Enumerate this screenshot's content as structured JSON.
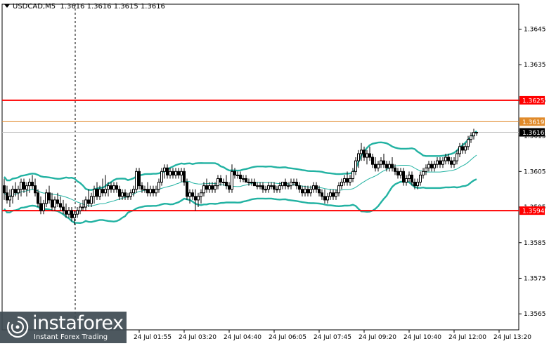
{
  "header": {
    "symbol": "USDCAD,M5",
    "ohlc": "1.3616 1.3616 1.3615 1.3616"
  },
  "watermark": {
    "brand": "instaforex",
    "tagline": "Instant Forex Trading"
  },
  "chart_data": {
    "type": "candlestick",
    "symbol": "USDCAD",
    "timeframe": "M5",
    "ylim": [
      1.35605,
      1.3652
    ],
    "y_ticks": [
      "1.3645",
      "1.3635",
      "1.3625",
      "1.3615",
      "1.3605",
      "1.3595",
      "1.3585",
      "1.3575",
      "1.3565"
    ],
    "x_ticks": [
      "24 Jul 01:55",
      "24 Jul 03:20",
      "24 Jul 04:40",
      "24 Jul 06:05",
      "24 Jul 07:45",
      "24 Jul 09:20",
      "24 Jul 10:40",
      "24 Jul 12:00",
      "24 Jul 13:20"
    ],
    "x_tick_index": [
      48,
      64,
      80,
      96,
      112,
      128,
      144,
      160,
      176
    ],
    "levels": [
      {
        "label": "1.3625",
        "value": 1.3625,
        "color": "#ff0000"
      },
      {
        "label": "1.3619",
        "value": 1.3619,
        "color": "#e08a2a"
      },
      {
        "label": "1.3616",
        "value": 1.3616,
        "color": "#c0c0c0"
      },
      {
        "label": "1.3594",
        "value": 1.3594,
        "color": "#ff0000"
      }
    ],
    "price_label": "1.3616",
    "candles": [
      [
        1.3601,
        1.3603,
        1.3597,
        1.3599
      ],
      [
        1.3599,
        1.3601,
        1.3596,
        1.3597
      ],
      [
        1.3597,
        1.36,
        1.3595,
        1.3598
      ],
      [
        1.3598,
        1.3601,
        1.3596,
        1.36
      ],
      [
        1.36,
        1.3602,
        1.3598,
        1.3599
      ],
      [
        1.3599,
        1.3601,
        1.3597,
        1.36
      ],
      [
        1.36,
        1.3603,
        1.3598,
        1.3602
      ],
      [
        1.3602,
        1.3603,
        1.3599,
        1.36
      ],
      [
        1.36,
        1.3602,
        1.3598,
        1.3601
      ],
      [
        1.3601,
        1.3603,
        1.3599,
        1.3602
      ],
      [
        1.3602,
        1.3604,
        1.36,
        1.3601
      ],
      [
        1.3601,
        1.3603,
        1.3598,
        1.3599
      ],
      [
        1.3599,
        1.36,
        1.3595,
        1.3596
      ],
      [
        1.3596,
        1.3598,
        1.3593,
        1.3594
      ],
      [
        1.3594,
        1.3597,
        1.3593,
        1.3596
      ],
      [
        1.3596,
        1.36,
        1.3595,
        1.3599
      ],
      [
        1.3599,
        1.3601,
        1.3596,
        1.3597
      ],
      [
        1.3597,
        1.3599,
        1.3594,
        1.3595
      ],
      [
        1.3595,
        1.3598,
        1.3594,
        1.3597
      ],
      [
        1.3597,
        1.3599,
        1.3595,
        1.3596
      ],
      [
        1.3596,
        1.3598,
        1.3594,
        1.3595
      ],
      [
        1.3595,
        1.3597,
        1.3593,
        1.3594
      ],
      [
        1.3594,
        1.3596,
        1.3592,
        1.3593
      ],
      [
        1.3593,
        1.3595,
        1.3592,
        1.3594
      ],
      [
        1.3594,
        1.3595,
        1.3591,
        1.3592
      ],
      [
        1.3592,
        1.3594,
        1.359,
        1.3593
      ],
      [
        1.3593,
        1.3595,
        1.3592,
        1.3594
      ],
      [
        1.3594,
        1.3596,
        1.3593,
        1.3595
      ],
      [
        1.3595,
        1.3597,
        1.3594,
        1.3595
      ],
      [
        1.3595,
        1.3598,
        1.3594,
        1.3597
      ],
      [
        1.3597,
        1.36,
        1.3595,
        1.3596
      ],
      [
        1.3596,
        1.3599,
        1.3595,
        1.3598
      ],
      [
        1.3598,
        1.3601,
        1.3596,
        1.36
      ],
      [
        1.36,
        1.3602,
        1.3597,
        1.3598
      ],
      [
        1.3598,
        1.3601,
        1.3597,
        1.36
      ],
      [
        1.36,
        1.3603,
        1.3598,
        1.3599
      ],
      [
        1.3599,
        1.3604,
        1.3598,
        1.36
      ],
      [
        1.36,
        1.3602,
        1.3598,
        1.3601
      ],
      [
        1.3601,
        1.3602,
        1.3599,
        1.36
      ],
      [
        1.36,
        1.3602,
        1.3599,
        1.3601
      ],
      [
        1.3601,
        1.3602,
        1.3599,
        1.36
      ],
      [
        1.36,
        1.3601,
        1.3597,
        1.3598
      ],
      [
        1.3598,
        1.36,
        1.3597,
        1.3599
      ],
      [
        1.3599,
        1.36,
        1.3597,
        1.3598
      ],
      [
        1.3598,
        1.3599,
        1.3597,
        1.3598
      ],
      [
        1.3598,
        1.36,
        1.3597,
        1.3599
      ],
      [
        1.3599,
        1.3601,
        1.3598,
        1.36
      ],
      [
        1.36,
        1.3606,
        1.3599,
        1.3605
      ],
      [
        1.3605,
        1.3606,
        1.36,
        1.3601
      ],
      [
        1.3601,
        1.3602,
        1.3599,
        1.36
      ],
      [
        1.36,
        1.3601,
        1.3599,
        1.36
      ],
      [
        1.36,
        1.3602,
        1.3598,
        1.3599
      ],
      [
        1.3599,
        1.3601,
        1.3598,
        1.36
      ],
      [
        1.36,
        1.3601,
        1.3598,
        1.3599
      ],
      [
        1.3599,
        1.3601,
        1.3598,
        1.36
      ],
      [
        1.36,
        1.3603,
        1.3599,
        1.3602
      ],
      [
        1.3602,
        1.3606,
        1.3601,
        1.3605
      ],
      [
        1.3605,
        1.3607,
        1.3603,
        1.3606
      ],
      [
        1.3606,
        1.3607,
        1.3603,
        1.3604
      ],
      [
        1.3604,
        1.3606,
        1.3603,
        1.3605
      ],
      [
        1.3605,
        1.3606,
        1.3603,
        1.3604
      ],
      [
        1.3604,
        1.3606,
        1.3603,
        1.3605
      ],
      [
        1.3605,
        1.3606,
        1.3603,
        1.3604
      ],
      [
        1.3604,
        1.3606,
        1.3602,
        1.3605
      ],
      [
        1.3605,
        1.3606,
        1.3601,
        1.3602
      ],
      [
        1.3602,
        1.3603,
        1.3597,
        1.3598
      ],
      [
        1.3598,
        1.36,
        1.3596,
        1.3599
      ],
      [
        1.3599,
        1.36,
        1.3597,
        1.3598
      ],
      [
        1.3598,
        1.36,
        1.3594,
        1.3597
      ],
      [
        1.3597,
        1.3599,
        1.3595,
        1.3598
      ],
      [
        1.3598,
        1.36,
        1.3596,
        1.3599
      ],
      [
        1.3599,
        1.3602,
        1.3598,
        1.3601
      ],
      [
        1.3601,
        1.3603,
        1.3599,
        1.36
      ],
      [
        1.36,
        1.3602,
        1.3599,
        1.3601
      ],
      [
        1.3601,
        1.3602,
        1.3599,
        1.36
      ],
      [
        1.36,
        1.3602,
        1.3599,
        1.3601
      ],
      [
        1.3601,
        1.3604,
        1.36,
        1.3603
      ],
      [
        1.3603,
        1.3604,
        1.3601,
        1.3602
      ],
      [
        1.3602,
        1.3603,
        1.3601,
        1.3602
      ],
      [
        1.3602,
        1.3604,
        1.36,
        1.3601
      ],
      [
        1.3601,
        1.3602,
        1.3599,
        1.36
      ],
      [
        1.36,
        1.3607,
        1.3599,
        1.3605
      ],
      [
        1.3605,
        1.3606,
        1.3603,
        1.3604
      ],
      [
        1.3604,
        1.3605,
        1.3603,
        1.3604
      ],
      [
        1.3604,
        1.3605,
        1.3602,
        1.3603
      ],
      [
        1.3603,
        1.3604,
        1.3602,
        1.3603
      ],
      [
        1.3603,
        1.3604,
        1.3602,
        1.3602
      ],
      [
        1.3602,
        1.3603,
        1.3601,
        1.3602
      ],
      [
        1.3602,
        1.3603,
        1.3601,
        1.3602
      ],
      [
        1.3602,
        1.3603,
        1.3601,
        1.3601
      ],
      [
        1.3601,
        1.3602,
        1.36,
        1.3601
      ],
      [
        1.3601,
        1.3602,
        1.36,
        1.3601
      ],
      [
        1.3601,
        1.3602,
        1.3599,
        1.36
      ],
      [
        1.36,
        1.3601,
        1.3599,
        1.36
      ],
      [
        1.36,
        1.3602,
        1.3599,
        1.3601
      ],
      [
        1.3601,
        1.3602,
        1.36,
        1.3601
      ],
      [
        1.3601,
        1.3602,
        1.3599,
        1.36
      ],
      [
        1.36,
        1.3601,
        1.3599,
        1.36
      ],
      [
        1.36,
        1.3602,
        1.3599,
        1.3601
      ],
      [
        1.3601,
        1.3602,
        1.36,
        1.3602
      ],
      [
        1.3602,
        1.3603,
        1.36,
        1.3601
      ],
      [
        1.3601,
        1.3602,
        1.36,
        1.3601
      ],
      [
        1.3601,
        1.3603,
        1.36,
        1.3602
      ],
      [
        1.3602,
        1.3603,
        1.3601,
        1.3602
      ],
      [
        1.3602,
        1.3603,
        1.36,
        1.3601
      ],
      [
        1.3601,
        1.3602,
        1.3599,
        1.36
      ],
      [
        1.36,
        1.3601,
        1.3598,
        1.3599
      ],
      [
        1.3599,
        1.3601,
        1.3598,
        1.36
      ],
      [
        1.36,
        1.3601,
        1.3598,
        1.3599
      ],
      [
        1.3599,
        1.3601,
        1.3598,
        1.36
      ],
      [
        1.36,
        1.3602,
        1.3599,
        1.3601
      ],
      [
        1.3601,
        1.3602,
        1.3599,
        1.36
      ],
      [
        1.36,
        1.3601,
        1.3598,
        1.3599
      ],
      [
        1.3599,
        1.36,
        1.3597,
        1.3598
      ],
      [
        1.3598,
        1.36,
        1.3596,
        1.3597
      ],
      [
        1.3597,
        1.3599,
        1.3596,
        1.3598
      ],
      [
        1.3598,
        1.36,
        1.3597,
        1.3599
      ],
      [
        1.3599,
        1.36,
        1.3597,
        1.3598
      ],
      [
        1.3598,
        1.36,
        1.3597,
        1.3599
      ],
      [
        1.3599,
        1.3602,
        1.3598,
        1.3601
      ],
      [
        1.3601,
        1.3603,
        1.36,
        1.3602
      ],
      [
        1.3602,
        1.3604,
        1.3601,
        1.3603
      ],
      [
        1.3603,
        1.3605,
        1.3601,
        1.3602
      ],
      [
        1.3602,
        1.3604,
        1.3601,
        1.3603
      ],
      [
        1.3603,
        1.3606,
        1.3602,
        1.3605
      ],
      [
        1.3605,
        1.3609,
        1.3604,
        1.3608
      ],
      [
        1.3608,
        1.3611,
        1.3606,
        1.361
      ],
      [
        1.361,
        1.3613,
        1.3608,
        1.3611
      ],
      [
        1.3611,
        1.3612,
        1.3608,
        1.3609
      ],
      [
        1.3609,
        1.3611,
        1.3607,
        1.361
      ],
      [
        1.361,
        1.3612,
        1.3608,
        1.3609
      ],
      [
        1.3609,
        1.361,
        1.3606,
        1.3607
      ],
      [
        1.3607,
        1.3609,
        1.3605,
        1.3606
      ],
      [
        1.3606,
        1.3608,
        1.3605,
        1.3607
      ],
      [
        1.3607,
        1.3609,
        1.3606,
        1.3608
      ],
      [
        1.3608,
        1.361,
        1.3606,
        1.3607
      ],
      [
        1.3607,
        1.3608,
        1.3605,
        1.3606
      ],
      [
        1.3606,
        1.3608,
        1.3605,
        1.3607
      ],
      [
        1.3607,
        1.3609,
        1.3605,
        1.3606
      ],
      [
        1.3606,
        1.3607,
        1.3604,
        1.3605
      ],
      [
        1.3605,
        1.3606,
        1.3603,
        1.3604
      ],
      [
        1.3604,
        1.3606,
        1.3603,
        1.3605
      ],
      [
        1.3605,
        1.3606,
        1.3601,
        1.3602
      ],
      [
        1.3602,
        1.3604,
        1.3601,
        1.3603
      ],
      [
        1.3603,
        1.3605,
        1.3602,
        1.3604
      ],
      [
        1.3604,
        1.3605,
        1.3601,
        1.3602
      ],
      [
        1.3602,
        1.3603,
        1.36,
        1.3601
      ],
      [
        1.3601,
        1.3603,
        1.36,
        1.3602
      ],
      [
        1.3602,
        1.3605,
        1.3601,
        1.3604
      ],
      [
        1.3604,
        1.3606,
        1.3603,
        1.3605
      ],
      [
        1.3605,
        1.3607,
        1.3604,
        1.3606
      ],
      [
        1.3606,
        1.3608,
        1.3605,
        1.3607
      ],
      [
        1.3607,
        1.3608,
        1.3605,
        1.3606
      ],
      [
        1.3606,
        1.3608,
        1.3605,
        1.3607
      ],
      [
        1.3607,
        1.3609,
        1.3606,
        1.3608
      ],
      [
        1.3608,
        1.3609,
        1.3606,
        1.3607
      ],
      [
        1.3607,
        1.3609,
        1.3606,
        1.3608
      ],
      [
        1.3608,
        1.361,
        1.3607,
        1.3609
      ],
      [
        1.3609,
        1.361,
        1.3607,
        1.3608
      ],
      [
        1.3608,
        1.3609,
        1.3606,
        1.3607
      ],
      [
        1.3607,
        1.3609,
        1.3606,
        1.3608
      ],
      [
        1.3608,
        1.3611,
        1.3607,
        1.361
      ],
      [
        1.361,
        1.3613,
        1.3609,
        1.3612
      ],
      [
        1.3612,
        1.3613,
        1.361,
        1.3611
      ],
      [
        1.3611,
        1.3613,
        1.361,
        1.3612
      ],
      [
        1.3612,
        1.3615,
        1.3611,
        1.3614
      ],
      [
        1.3614,
        1.3616,
        1.3613,
        1.3615
      ],
      [
        1.3615,
        1.3617,
        1.3614,
        1.3616
      ],
      [
        1.3616,
        1.3616,
        1.3615,
        1.3616
      ]
    ],
    "bollinger": {
      "period": 20,
      "color": "#22b2a2"
    }
  }
}
